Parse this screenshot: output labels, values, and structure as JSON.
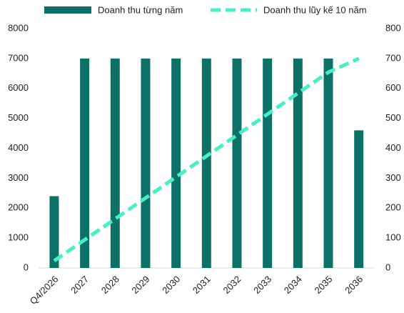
{
  "chart_data": {
    "type": "bar",
    "categories": [
      "Q4/2026",
      "2027",
      "2028",
      "2029",
      "2030",
      "2031",
      "2032",
      "2033",
      "2034",
      "2035",
      "2036"
    ],
    "series": [
      {
        "name": "Doanh thu từng năm",
        "type": "bar",
        "color": "#0e7168",
        "values": [
          2400,
          7000,
          7000,
          7000,
          7000,
          7000,
          7000,
          7000,
          7000,
          7000,
          4600
        ]
      },
      {
        "name": "Doanh thu lũy kế 10 năm",
        "type": "line",
        "axis": "y2",
        "color": "#46f0c6",
        "values": [
          24,
          94,
          164,
          234,
          304,
          374,
          444,
          514,
          584,
          654,
          700
        ]
      }
    ],
    "ylim": [
      0,
      8000
    ],
    "yticks": [
      0,
      1000,
      2000,
      3000,
      4000,
      5000,
      6000,
      7000,
      8000
    ],
    "y2lim": [
      0,
      800
    ],
    "y2ticks": [
      0,
      100,
      200,
      300,
      400,
      500,
      600,
      700,
      800
    ],
    "legend": "top"
  }
}
